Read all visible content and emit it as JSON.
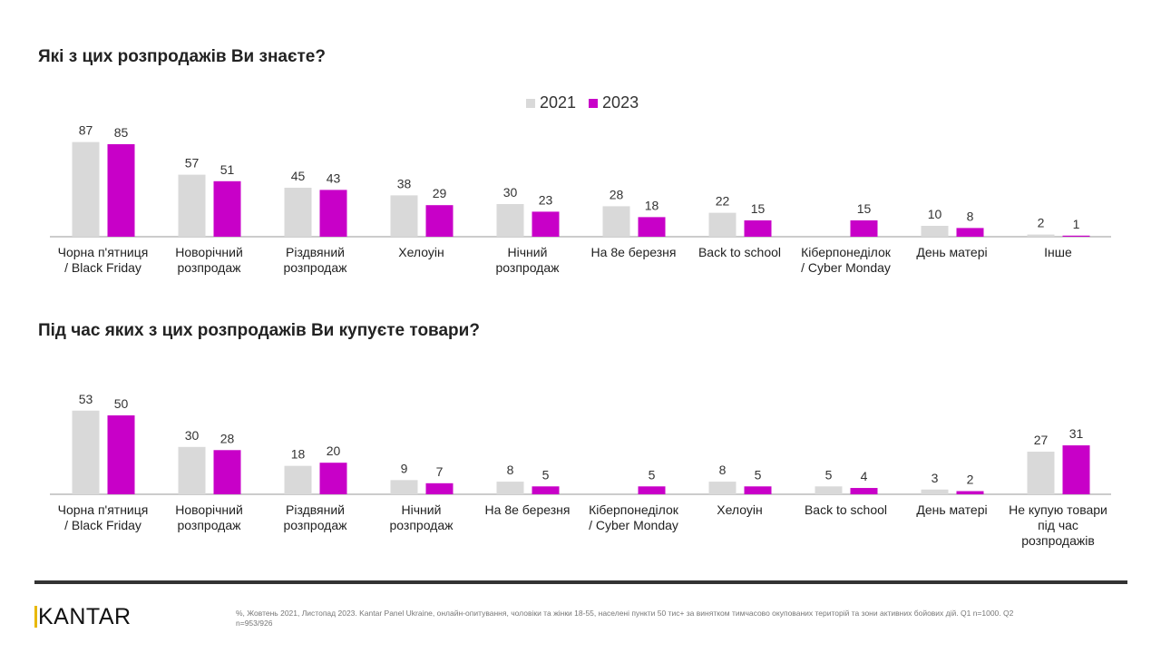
{
  "colors": {
    "2021": "#d9d9d9",
    "2023": "#c800c8"
  },
  "legend": [
    "2021",
    "2023"
  ],
  "chart_data": [
    {
      "type": "bar",
      "title": "Які з цих розпродажів Ви знаєте?",
      "legend_position": "top",
      "categories": [
        "Чорна п'ятниця / Black Friday",
        "Новорічний розпродаж",
        "Різдвяний розпродаж",
        "Хелоуін",
        "Нічний розпродаж",
        "На 8е березня",
        "Back to school",
        "Кіберпонеділок / Cyber Monday",
        "День матері",
        "Інше"
      ],
      "series": [
        {
          "name": "2021",
          "values": [
            87,
            57,
            45,
            38,
            30,
            28,
            22,
            null,
            10,
            2
          ]
        },
        {
          "name": "2023",
          "values": [
            85,
            51,
            43,
            29,
            23,
            18,
            15,
            15,
            8,
            1
          ]
        }
      ]
    },
    {
      "type": "bar",
      "title": "Під час яких з цих розпродажів Ви купуєте товари?",
      "categories": [
        "Чорна п'ятниця / Black Friday",
        "Новорічний розпродаж",
        "Різдвяний розпродаж",
        "Нічний розпродаж",
        "На 8е березня",
        "Кіберпонеділок / Cyber Monday",
        "Хелоуін",
        "Back to school",
        "День матері",
        "Не купую товари під час розпродажів"
      ],
      "series": [
        {
          "name": "2021",
          "values": [
            53,
            30,
            18,
            9,
            8,
            null,
            8,
            5,
            3,
            27
          ]
        },
        {
          "name": "2023",
          "values": [
            50,
            28,
            20,
            7,
            5,
            5,
            5,
            4,
            2,
            31
          ]
        }
      ]
    }
  ],
  "footer": {
    "logo": "KANTAR",
    "note": "%, Жовтень 2021, Листопад 2023. Kantar Panel Ukraine, онлайн-опитування, чоловіки та жінки 18-55, населені пункти 50 тис+ за винятком тимчасово окупованих територій та зони активних бойових дій. Q1 n=1000. Q2 n=953/926"
  }
}
